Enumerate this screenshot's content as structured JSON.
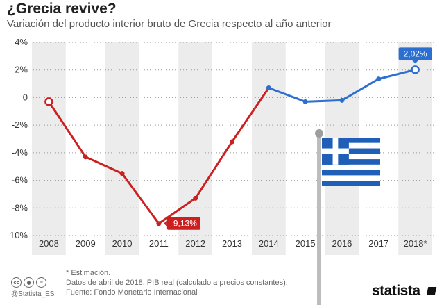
{
  "header": {
    "title": "¿Grecia revive?",
    "subtitle": "Variación del producto interior bruto de Grecia respecto al año anterior"
  },
  "chart_data": {
    "type": "line",
    "title": "¿Grecia revive?",
    "subtitle": "Variación del producto interior bruto de Grecia respecto al año anterior",
    "categories": [
      "2008",
      "2009",
      "2010",
      "2011",
      "2012",
      "2013",
      "2014",
      "2015",
      "2016",
      "2017",
      "2018*"
    ],
    "series": [
      {
        "values": [
          -0.3,
          -4.3,
          -5.5,
          -9.13,
          -7.3,
          -3.2,
          0.7,
          -0.3,
          -0.2,
          1.35,
          2.02
        ]
      }
    ],
    "ylim": [
      -10,
      4
    ],
    "yticks": [
      4,
      2,
      0,
      -2,
      -4,
      -6,
      -8,
      -10
    ],
    "ytick_labels": [
      "4%",
      "2%",
      "0",
      "-2%",
      "-4%",
      "-6%",
      "-8%",
      "-10%"
    ],
    "xlabel": "",
    "ylabel": "",
    "grid": "alternating column bands",
    "annotations": [
      {
        "index": 3,
        "text": "-9,13%"
      },
      {
        "index": 10,
        "text": "2,02%"
      }
    ],
    "colors": {
      "negative": "#cc1f1f",
      "positive": "#2c6fcf",
      "band": "#ececec"
    }
  },
  "footer": {
    "note": "* Estimación.",
    "data_note": "Datos de abril de 2018. PIB real (calculado a precios constantes).",
    "source": "Fuente: Fondo Monetario Internacional",
    "handle": "@Statista_ES",
    "brand": "statista"
  },
  "icons": [
    "cc-icon",
    "person-icon",
    "equals-icon",
    "greek-flag-icon"
  ]
}
